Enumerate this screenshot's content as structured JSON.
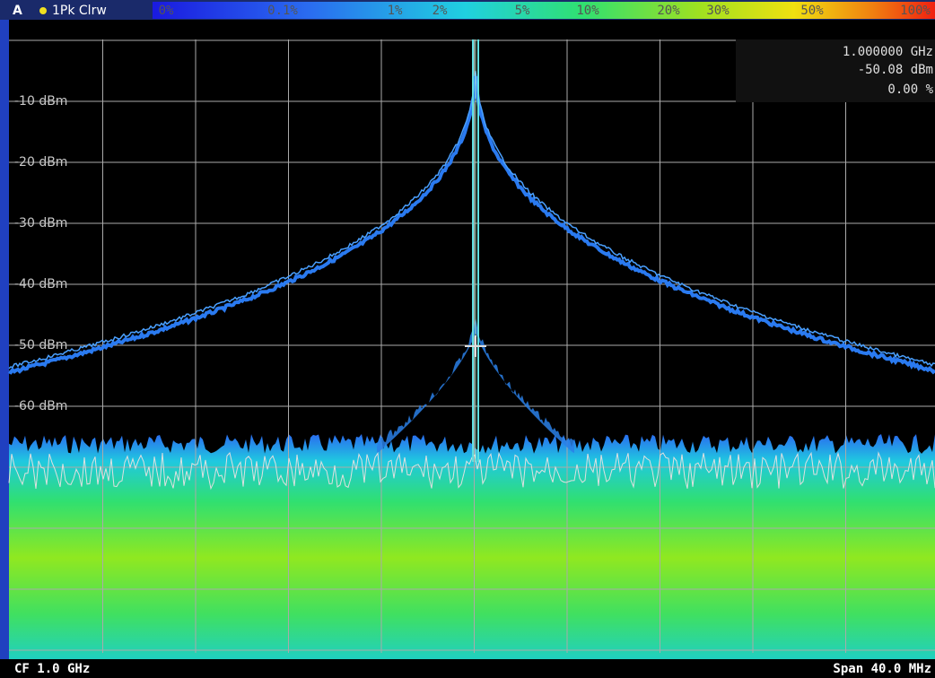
{
  "header": {
    "trace": "A",
    "mode": "1Pk Clrw",
    "scale": [
      "0%",
      "0.1%",
      "1%",
      "2%",
      "5%",
      "10%",
      "20%",
      "30%",
      "50%",
      "100%"
    ]
  },
  "marker": {
    "frequency": "1.000000 GHz",
    "level": "-50.08 dBm",
    "percent": "0.00 %"
  },
  "y_axis": {
    "labels": [
      "-10 dBm",
      "-20 dBm",
      "-30 dBm",
      "-40 dBm",
      "-50 dBm",
      "-60 dBm"
    ]
  },
  "footer": {
    "center_frequency": "CF 1.0 GHz",
    "span": "Span 40.0 MHz"
  }
}
